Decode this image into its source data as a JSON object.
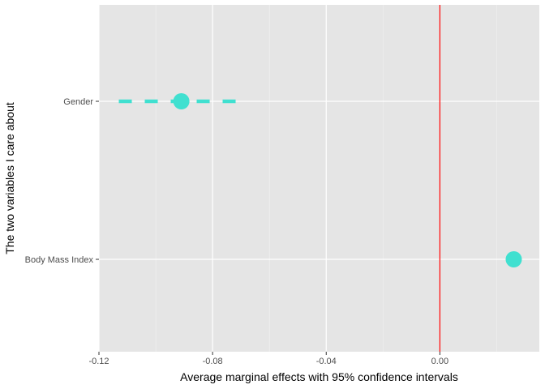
{
  "chart_data": {
    "type": "scatter",
    "title": "",
    "xlabel": "Average marginal effects with 95% confidence intervals",
    "ylabel": "The two variables I care about",
    "xlim": [
      -0.12,
      0.035
    ],
    "x_ticks": [
      -0.12,
      -0.08,
      -0.04,
      0.0
    ],
    "x_tick_labels": [
      "-0.12",
      "-0.08",
      "-0.04",
      "0.00"
    ],
    "x_minor_ticks": [
      -0.1,
      -0.06,
      -0.02,
      0.02
    ],
    "categories": [
      "Gender",
      "Body Mass Index"
    ],
    "grid": true,
    "reference_line": {
      "x": 0,
      "color": "#ff0000"
    },
    "point_color": "#40e0d0",
    "panel_background": "#e5e5e5",
    "points": [
      {
        "label": "Gender",
        "estimate": -0.091,
        "ci": [
          -0.113,
          -0.069
        ],
        "ci_style": "dashed"
      },
      {
        "label": "Body Mass Index",
        "estimate": 0.026,
        "ci": null
      }
    ]
  }
}
